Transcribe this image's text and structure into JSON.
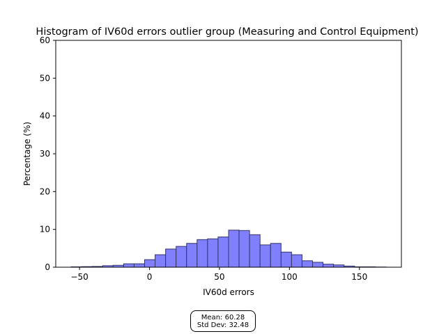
{
  "chart_data": {
    "type": "bar",
    "title": "Histogram of IV60d errors outlier group (Measuring and Control Equipment)",
    "xlabel": "IV60d errors",
    "ylabel": "Percentage (%)",
    "xlim": [
      -67,
      180
    ],
    "ylim": [
      0,
      60
    ],
    "xticks": [
      -50,
      0,
      50,
      100,
      150
    ],
    "yticks": [
      0,
      10,
      20,
      30,
      40,
      50,
      60
    ],
    "grid": false,
    "bar_color": "#8080ff",
    "bar_edge_color": "#333366",
    "bin_width": 7.5,
    "bins": [
      {
        "start": -56.0,
        "value": 0.1
      },
      {
        "start": -48.5,
        "value": 0.15
      },
      {
        "start": -41.0,
        "value": 0.2
      },
      {
        "start": -33.5,
        "value": 0.4
      },
      {
        "start": -26.0,
        "value": 0.5
      },
      {
        "start": -18.5,
        "value": 0.9
      },
      {
        "start": -11.0,
        "value": 0.9
      },
      {
        "start": -3.5,
        "value": 2.0
      },
      {
        "start": 4.0,
        "value": 3.3
      },
      {
        "start": 11.5,
        "value": 4.8
      },
      {
        "start": 19.0,
        "value": 5.5
      },
      {
        "start": 26.5,
        "value": 6.3
      },
      {
        "start": 34.0,
        "value": 7.3
      },
      {
        "start": 41.5,
        "value": 7.5
      },
      {
        "start": 49.0,
        "value": 8.0
      },
      {
        "start": 56.5,
        "value": 9.8
      },
      {
        "start": 64.0,
        "value": 9.7
      },
      {
        "start": 71.5,
        "value": 8.6
      },
      {
        "start": 79.0,
        "value": 5.9
      },
      {
        "start": 86.5,
        "value": 6.3
      },
      {
        "start": 94.0,
        "value": 4.0
      },
      {
        "start": 101.5,
        "value": 3.3
      },
      {
        "start": 109.0,
        "value": 1.7
      },
      {
        "start": 116.5,
        "value": 1.3
      },
      {
        "start": 124.0,
        "value": 0.8
      },
      {
        "start": 131.5,
        "value": 0.6
      },
      {
        "start": 139.0,
        "value": 0.3
      },
      {
        "start": 146.5,
        "value": 0.1
      },
      {
        "start": 154.0,
        "value": 0.1
      },
      {
        "start": 161.5,
        "value": 0.05
      }
    ]
  },
  "stats": {
    "mean": "Mean: 60.28",
    "std_dev": "Std Dev: 32.48"
  }
}
